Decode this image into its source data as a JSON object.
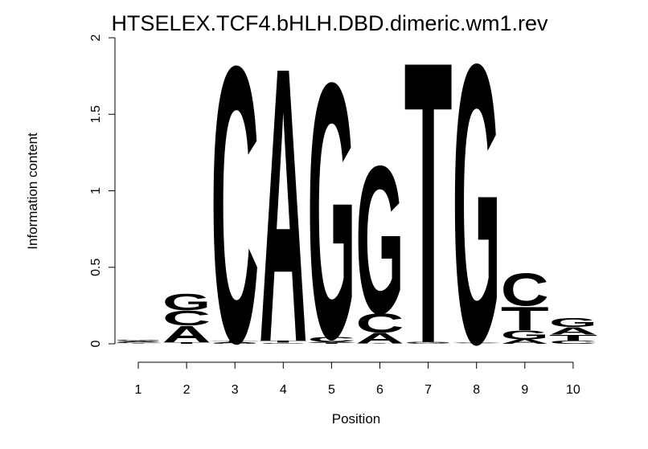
{
  "chart_data": {
    "type": "sequence-logo",
    "title": "HTSELEX.TCF4.bHLH.DBD.dimeric.wm1.rev",
    "xlabel": "Position",
    "ylabel": "Information content",
    "ylim": [
      0,
      2
    ],
    "yticks": [
      "0",
      "0.5",
      "1",
      "1.5",
      "2"
    ],
    "xticks": [
      "1",
      "2",
      "3",
      "4",
      "5",
      "6",
      "7",
      "8",
      "9",
      "10"
    ],
    "colors": {
      "A": "#00ee00",
      "C": "#0000ee",
      "G": "#ffa500",
      "T": "#ff0000"
    },
    "positions": [
      {
        "position": 1,
        "stack": [
          {
            "letter": "T",
            "height": 0.004
          },
          {
            "letter": "C",
            "height": 0.006
          },
          {
            "letter": "A",
            "height": 0.008
          },
          {
            "letter": "G",
            "height": 0.007
          }
        ]
      },
      {
        "position": 2,
        "stack": [
          {
            "letter": "T",
            "height": 0.01
          },
          {
            "letter": "A",
            "height": 0.11
          },
          {
            "letter": "C",
            "height": 0.1
          },
          {
            "letter": "G",
            "height": 0.11
          }
        ]
      },
      {
        "position": 3,
        "stack": [
          {
            "letter": "G",
            "height": 0.006
          },
          {
            "letter": "A",
            "height": 0.006
          },
          {
            "letter": "T",
            "height": 0.006
          },
          {
            "letter": "C",
            "height": 1.87
          }
        ]
      },
      {
        "position": 4,
        "stack": [
          {
            "letter": "C",
            "height": 0.003
          },
          {
            "letter": "G",
            "height": 0.004
          },
          {
            "letter": "T",
            "height": 0.013
          },
          {
            "letter": "A",
            "height": 1.86
          }
        ]
      },
      {
        "position": 5,
        "stack": [
          {
            "letter": "T",
            "height": 0.008
          },
          {
            "letter": "A",
            "height": 0.006
          },
          {
            "letter": "C",
            "height": 0.03
          },
          {
            "letter": "G",
            "height": 1.73
          }
        ]
      },
      {
        "position": 6,
        "stack": [
          {
            "letter": "T",
            "height": 0.003
          },
          {
            "letter": "A",
            "height": 0.07
          },
          {
            "letter": "C",
            "height": 0.13
          },
          {
            "letter": "G",
            "height": 1.0
          }
        ]
      },
      {
        "position": 7,
        "stack": [
          {
            "letter": "A",
            "height": 0.003
          },
          {
            "letter": "C",
            "height": 0.003
          },
          {
            "letter": "G",
            "height": 0.006
          },
          {
            "letter": "T",
            "height": 1.91
          }
        ]
      },
      {
        "position": 8,
        "stack": [
          {
            "letter": "A",
            "height": 0.004
          },
          {
            "letter": "C",
            "height": 0.004
          },
          {
            "letter": "T",
            "height": 0.004
          },
          {
            "letter": "G",
            "height": 1.89
          }
        ]
      },
      {
        "position": 9,
        "stack": [
          {
            "letter": "A",
            "height": 0.03
          },
          {
            "letter": "G",
            "height": 0.06
          },
          {
            "letter": "T",
            "height": 0.16
          },
          {
            "letter": "C",
            "height": 0.22
          }
        ]
      },
      {
        "position": 10,
        "stack": [
          {
            "letter": "C",
            "height": 0.02
          },
          {
            "letter": "T",
            "height": 0.04
          },
          {
            "letter": "A",
            "height": 0.05
          },
          {
            "letter": "G",
            "height": 0.06
          }
        ]
      }
    ]
  }
}
